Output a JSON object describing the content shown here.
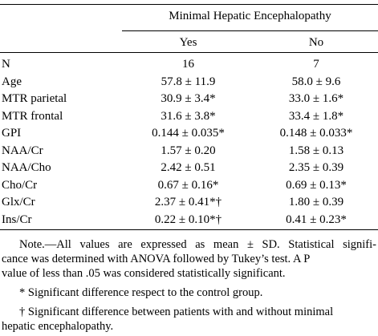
{
  "header": {
    "span_title": "Minimal Hepatic Encephalopathy",
    "col_yes": "Yes",
    "col_no": "No"
  },
  "rows": [
    {
      "label": "N",
      "yes": "16",
      "no": "7"
    },
    {
      "label": "Age",
      "yes": "57.8 ± 11.9",
      "no": "58.0 ± 9.6"
    },
    {
      "label": "MTR parietal",
      "yes": "30.9 ± 3.4*",
      "no": "33.0 ± 1.6*"
    },
    {
      "label": "MTR frontal",
      "yes": "31.6 ± 3.8*",
      "no": "33.4 ± 1.8*"
    },
    {
      "label": "GPI",
      "yes": "0.144 ± 0.035*",
      "no": "0.148 ± 0.033*"
    },
    {
      "label": "NAA/Cr",
      "yes": "1.57 ± 0.20",
      "no": "1.58 ± 0.13"
    },
    {
      "label": "NAA/Cho",
      "yes": "2.42 ± 0.51",
      "no": "2.35 ± 0.39"
    },
    {
      "label": "Cho/Cr",
      "yes": "0.67 ± 0.16*",
      "no": "0.69 ± 0.13*"
    },
    {
      "label": "Glx/Cr",
      "yes": "2.37 ± 0.41*†",
      "no": "1.80 ± 0.39"
    },
    {
      "label": "Ins/Cr",
      "yes": "0.22 ± 0.10*†",
      "no": "0.41 ± 0.23*"
    }
  ],
  "notes": {
    "note_line1": "Note.—All values are expressed as mean ± SD. Statistical signifi-",
    "note_line2": "cance was determined with ANOVA followed by Tukey’s test. A P",
    "note_line3": "value of less than .05 was considered statistically significant.",
    "footnote_star": "* Significant difference respect to the control group.",
    "footnote_dagger_line1": "† Significant difference between patients with and without minimal",
    "footnote_dagger_line2": "hepatic encephalopathy."
  }
}
